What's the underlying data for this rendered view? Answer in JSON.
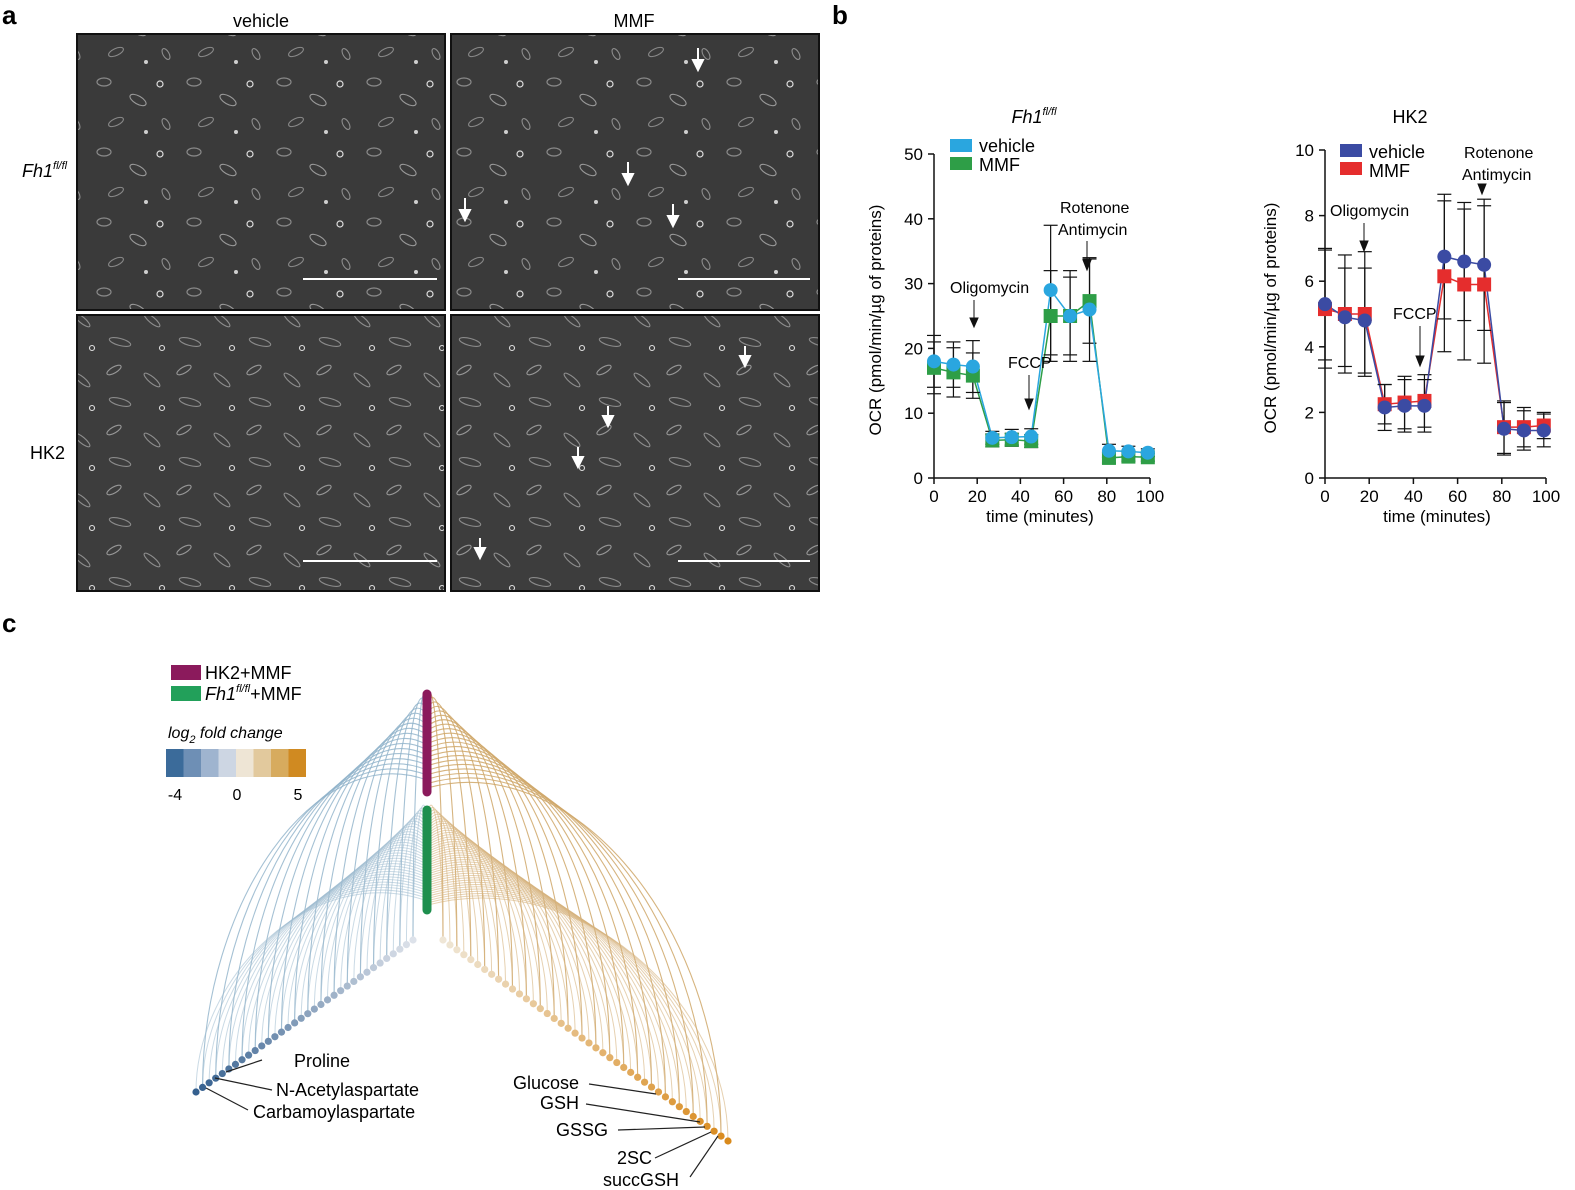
{
  "panel_a": {
    "letter": "a",
    "columns": [
      "vehicle",
      "MMF"
    ],
    "rows": [
      {
        "label_main": "Fh1",
        "label_sup": "fl/fl",
        "italic": true
      },
      {
        "label_main": "HK2",
        "label_sup": "",
        "italic": false
      }
    ]
  },
  "panel_b": {
    "letter": "b"
  },
  "panel_c": {
    "letter": "c",
    "legend": [
      {
        "label_main": "HK2+MMF",
        "label_sup": "",
        "color": "#8b1a5c"
      },
      {
        "label_main": "Fh1",
        "label_sup": "fl/fl",
        "label_tail": "+MMF",
        "color": "#22a05a"
      }
    ],
    "scale_title_pre": "log",
    "scale_title_sub": "2",
    "scale_title_post": " fold change",
    "scale_colors": [
      "#3b6b9a",
      "#6e8fb5",
      "#9fb4cf",
      "#cdd6e3",
      "#eee5d5",
      "#e2c99d",
      "#d7ab5e",
      "#d08a21"
    ],
    "scale_ticks": [
      "-4",
      "0",
      "5"
    ],
    "annotations_left": [
      "Proline",
      "N-Acetylaspartate",
      "Carbamoylaspartate"
    ],
    "annotations_right": [
      "Glucose",
      "GSH",
      "GSSG",
      "2SC",
      "succGSH"
    ]
  },
  "chart_data": [
    {
      "type": "line",
      "title": "Fh1fl/fl",
      "title_main": "Fh1",
      "title_sup": "fl/fl",
      "xlabel": "time (minutes)",
      "ylabel": "OCR (pmol/min/µg of proteins)",
      "xlim": [
        0,
        100
      ],
      "ylim": [
        0,
        50
      ],
      "xticks": [
        0,
        20,
        40,
        60,
        80,
        100
      ],
      "yticks": [
        0,
        10,
        20,
        30,
        40,
        50
      ],
      "x": [
        0,
        9,
        18,
        27,
        36,
        45,
        54,
        63,
        72,
        81,
        90,
        99
      ],
      "series": [
        {
          "name": "vehicle",
          "color": "#2aa6df",
          "marker": "circle",
          "values": [
            18,
            17.5,
            17.2,
            6.2,
            6.3,
            6.4,
            29,
            25,
            26,
            4.2,
            4.1,
            3.9
          ],
          "err": [
            4,
            3.5,
            4,
            1,
            1.2,
            1.2,
            10,
            6,
            8,
            1,
            0.8,
            0.6
          ]
        },
        {
          "name": "MMF",
          "color": "#2e9e47",
          "marker": "square",
          "values": [
            17,
            16.3,
            15.8,
            5.8,
            5.9,
            5.7,
            25,
            25,
            27.3,
            3.1,
            3.3,
            3.2
          ],
          "err": [
            4,
            3.8,
            3.5,
            1,
            1,
            1,
            7,
            7,
            6.5,
            0.8,
            0.7,
            0.6
          ]
        }
      ],
      "annotations": [
        "Oligomycin",
        "FCCP",
        "Rotenone",
        "Antimycin"
      ]
    },
    {
      "type": "line",
      "title": "HK2",
      "xlabel": "time (minutes)",
      "ylabel": "OCR (pmol/min/µg of proteins)",
      "xlim": [
        0,
        100
      ],
      "ylim": [
        0,
        10
      ],
      "xticks": [
        0,
        20,
        40,
        60,
        80,
        100
      ],
      "yticks": [
        0,
        2,
        4,
        6,
        8,
        10
      ],
      "x": [
        0,
        9,
        18,
        27,
        36,
        45,
        54,
        63,
        72,
        81,
        90,
        99
      ],
      "series": [
        {
          "name": "vehicle",
          "color": "#3b4ba3",
          "marker": "circle",
          "values": [
            5.3,
            4.9,
            4.8,
            2.15,
            2.2,
            2.2,
            6.75,
            6.6,
            6.5,
            1.5,
            1.45,
            1.45
          ],
          "err": [
            1.7,
            1.5,
            1.6,
            0.7,
            0.8,
            0.8,
            1.9,
            1.8,
            2.0,
            0.8,
            0.6,
            0.5
          ]
        },
        {
          "name": "MMF",
          "color": "#e52d2d",
          "marker": "square",
          "values": [
            5.15,
            5.0,
            5.0,
            2.25,
            2.3,
            2.35,
            6.15,
            5.9,
            5.9,
            1.55,
            1.55,
            1.6
          ],
          "err": [
            1.8,
            1.8,
            1.9,
            0.6,
            0.8,
            0.8,
            2.3,
            2.3,
            2.4,
            0.8,
            0.6,
            0.4
          ]
        }
      ],
      "annotations": [
        "Oligomycin",
        "FCCP",
        "Rotenone",
        "Antimycin"
      ]
    }
  ]
}
